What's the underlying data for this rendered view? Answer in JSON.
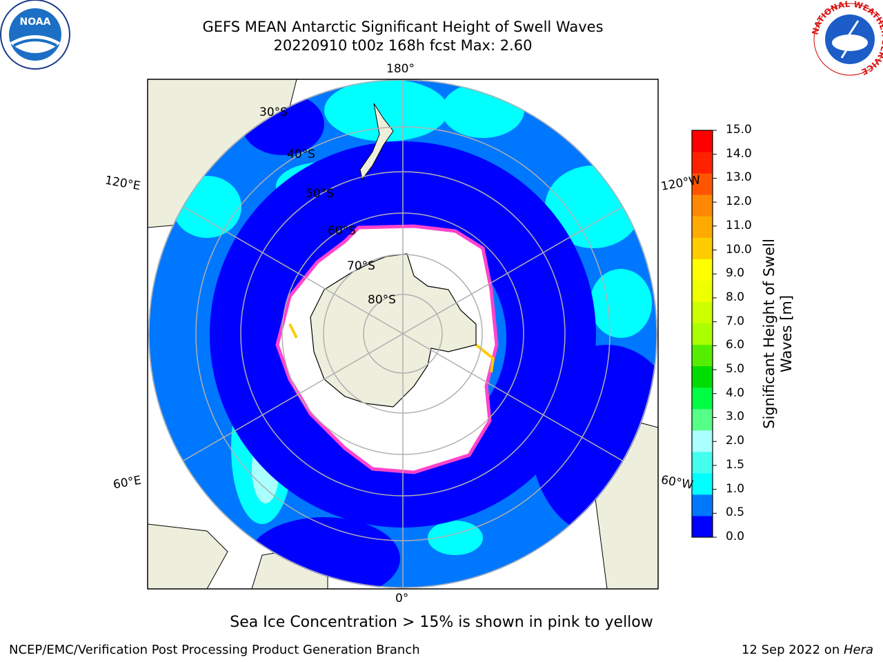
{
  "header": {
    "title_line1": "GEFS MEAN Antarctic Significant Height of Swell Waves",
    "title_line2": "20220910 t00z 168h fcst   Max: 2.60"
  },
  "map": {
    "lon_labels": {
      "top": "180°",
      "bottom": "0°",
      "upper_left": "120°E",
      "upper_right": "120°W",
      "lower_left": "60°E",
      "lower_right": "60°W"
    },
    "lat_labels": [
      "30°S",
      "40°S",
      "50°S",
      "60°S",
      "70°S",
      "80°S"
    ],
    "colors": {
      "ocean_deep": "#0000ff",
      "ocean_mid": "#0077ff",
      "cyan": "#00ffff",
      "land": "#eeeedd",
      "ice": "#ffffff",
      "ice_edge": "#ff44cc",
      "grid": "#b0b0b0"
    }
  },
  "colorbar": {
    "label": "Significant Height of Swell Waves [m]",
    "ticks": [
      "15.0",
      "14.0",
      "13.0",
      "12.0",
      "11.0",
      "10.0",
      "9.0",
      "8.0",
      "7.0",
      "6.0",
      "5.0",
      "4.0",
      "3.0",
      "2.0",
      "1.5",
      "1.0",
      "0.5",
      "0.0"
    ],
    "colors": [
      "#0000ff",
      "#0077ff",
      "#00ffff",
      "#44ffee",
      "#aaffff",
      "#55ff88",
      "#00ff44",
      "#00dd00",
      "#55ee00",
      "#aaff00",
      "#ccff00",
      "#eeff00",
      "#ffff00",
      "#ffcc00",
      "#ffaa00",
      "#ff8800",
      "#ff5500",
      "#ff2200",
      "#ff0000"
    ]
  },
  "note": "Sea Ice Concentration > 15% is shown in pink to yellow",
  "footer": {
    "left": "NCEP/EMC/Verification Post Processing Product Generation Branch",
    "right_prefix": "12 Sep 2022 on ",
    "right_host": "Hera"
  },
  "logos": {
    "left": "NOAA",
    "right_ring": "NATIONAL WEATHER SERVICE"
  }
}
